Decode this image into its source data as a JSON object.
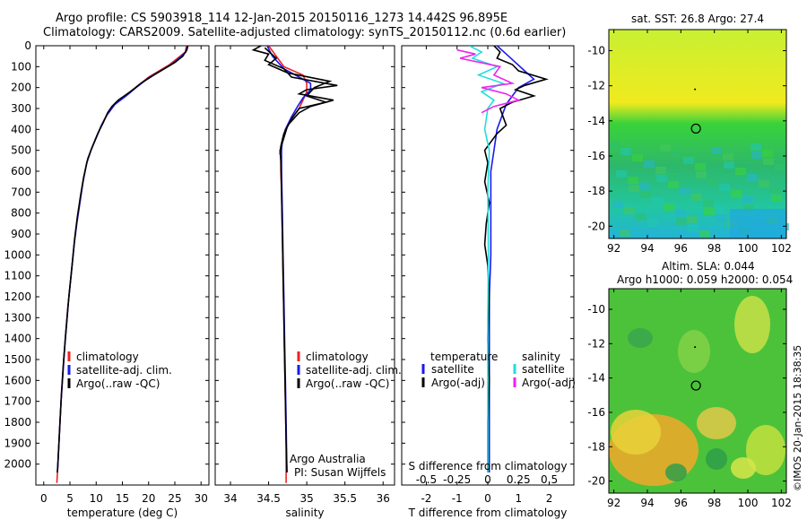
{
  "header": {
    "title_line1": "Argo profile: CS 5903918_114 12-Jan-2015 20150116_1273 14.442S 96.895E",
    "title_line2": "Climatology: CARS2009. Satellite-adjusted climatology: synTS_20150112.nc (0.6d earlier)"
  },
  "depth_axis": {
    "ylim": [
      0,
      2100
    ],
    "ticks": [
      0,
      100,
      200,
      300,
      400,
      500,
      600,
      700,
      800,
      900,
      1000,
      1100,
      1200,
      1300,
      1400,
      1500,
      1600,
      1700,
      1800,
      1900,
      2000
    ],
    "invert": true
  },
  "colors": {
    "climatology": "#ee2222",
    "satellite": "#1a1aee",
    "argo": "#000000",
    "salinity_sat": "#22dddd",
    "salinity_argo": "#ee22ee"
  },
  "chart_data": [
    {
      "type": "line",
      "name": "temperature-panel",
      "xlabel": "temperature (deg C)",
      "xlim": [
        -1.5,
        31.5
      ],
      "xticks": [
        0,
        5,
        10,
        15,
        20,
        25,
        30
      ],
      "legend": [
        "climatology",
        "satellite-adj. clim.",
        "Argo(..raw -QC)"
      ],
      "legend_placement": "lower-center",
      "series": [
        {
          "name": "climatology",
          "points": [
            [
              27.2,
              0
            ],
            [
              27.0,
              30
            ],
            [
              25.5,
              60
            ],
            [
              24,
              90
            ],
            [
              22,
              120
            ],
            [
              20,
              150
            ],
            [
              17.5,
              200
            ],
            [
              15.5,
              240
            ],
            [
              13.5,
              280
            ],
            [
              12,
              330
            ],
            [
              11,
              380
            ],
            [
              10,
              440
            ],
            [
              9,
              500
            ],
            [
              8.2,
              560
            ],
            [
              7.5,
              650
            ],
            [
              6.9,
              750
            ],
            [
              6.3,
              850
            ],
            [
              5.8,
              950
            ],
            [
              5.2,
              1100
            ],
            [
              4.6,
              1250
            ],
            [
              4.1,
              1400
            ],
            [
              3.7,
              1550
            ],
            [
              3.3,
              1700
            ],
            [
              3.0,
              1850
            ],
            [
              2.7,
              2000
            ],
            [
              2.5,
              2090
            ]
          ]
        },
        {
          "name": "satellite-adj. clim.",
          "points": [
            [
              27.4,
              0
            ],
            [
              27.1,
              30
            ],
            [
              25.8,
              60
            ],
            [
              24.3,
              90
            ],
            [
              22.3,
              120
            ],
            [
              20.2,
              150
            ],
            [
              17.6,
              200
            ],
            [
              15.7,
              240
            ],
            [
              13.6,
              280
            ],
            [
              12.1,
              330
            ],
            [
              11,
              380
            ],
            [
              10,
              440
            ],
            [
              9,
              500
            ],
            [
              8.2,
              560
            ],
            [
              7.5,
              650
            ],
            [
              6.9,
              750
            ],
            [
              6.3,
              850
            ],
            [
              5.8,
              950
            ],
            [
              5.2,
              1100
            ],
            [
              4.6,
              1250
            ],
            [
              4.1,
              1400
            ],
            [
              3.7,
              1550
            ],
            [
              3.3,
              1700
            ],
            [
              3.0,
              1850
            ],
            [
              2.7,
              2000
            ],
            [
              2.6,
              2040
            ]
          ]
        },
        {
          "name": "Argo(..raw -QC)",
          "points": [
            [
              27.5,
              0
            ],
            [
              27.3,
              20
            ],
            [
              26.5,
              50
            ],
            [
              25,
              80
            ],
            [
              23,
              110
            ],
            [
              21,
              140
            ],
            [
              18.5,
              180
            ],
            [
              16.5,
              220
            ],
            [
              14.2,
              260
            ],
            [
              13,
              290
            ],
            [
              12.2,
              320
            ],
            [
              11.3,
              370
            ],
            [
              10.3,
              420
            ],
            [
              9.3,
              480
            ],
            [
              8.4,
              540
            ],
            [
              7.6,
              630
            ],
            [
              7.0,
              720
            ],
            [
              6.4,
              820
            ],
            [
              5.9,
              920
            ],
            [
              5.4,
              1050
            ],
            [
              4.8,
              1200
            ],
            [
              4.3,
              1350
            ],
            [
              3.8,
              1500
            ],
            [
              3.4,
              1650
            ],
            [
              3.1,
              1800
            ],
            [
              2.8,
              1950
            ],
            [
              2.6,
              2040
            ]
          ]
        }
      ]
    },
    {
      "type": "line",
      "name": "salinity-panel",
      "xlabel": "salinity",
      "xlim": [
        33.8,
        36.15
      ],
      "xticks": [
        34,
        34.5,
        35,
        35.5,
        36
      ],
      "legend": [
        "climatology",
        "satellite-adj. clim.",
        "Argo(..raw -QC)"
      ],
      "legend_placement": "lower-center",
      "series": [
        {
          "name": "climatology",
          "points": [
            [
              34.5,
              0
            ],
            [
              34.6,
              50
            ],
            [
              34.7,
              100
            ],
            [
              34.95,
              140
            ],
            [
              35.0,
              180
            ],
            [
              35.0,
              220
            ],
            [
              34.95,
              260
            ],
            [
              34.9,
              300
            ],
            [
              34.8,
              350
            ],
            [
              34.72,
              400
            ],
            [
              34.68,
              450
            ],
            [
              34.66,
              500
            ],
            [
              34.66,
              600
            ],
            [
              34.67,
              700
            ],
            [
              34.68,
              900
            ],
            [
              34.69,
              1100
            ],
            [
              34.7,
              1300
            ],
            [
              34.71,
              1500
            ],
            [
              34.72,
              1700
            ],
            [
              34.73,
              1900
            ],
            [
              34.73,
              2090
            ]
          ]
        },
        {
          "name": "satellite-adj. clim.",
          "points": [
            [
              34.48,
              0
            ],
            [
              34.55,
              50
            ],
            [
              34.7,
              110
            ],
            [
              34.9,
              150
            ],
            [
              35.05,
              180
            ],
            [
              35.05,
              210
            ],
            [
              34.95,
              250
            ],
            [
              34.88,
              290
            ],
            [
              34.8,
              340
            ],
            [
              34.72,
              400
            ],
            [
              34.68,
              450
            ],
            [
              34.67,
              500
            ],
            [
              34.67,
              600
            ],
            [
              34.68,
              800
            ],
            [
              34.69,
              1000
            ],
            [
              34.7,
              1200
            ],
            [
              34.71,
              1400
            ],
            [
              34.72,
              1600
            ],
            [
              34.73,
              1800
            ],
            [
              34.74,
              2040
            ]
          ]
        },
        {
          "name": "Argo(..raw -QC)",
          "points": [
            [
              34.4,
              0
            ],
            [
              34.3,
              20
            ],
            [
              34.5,
              40
            ],
            [
              34.45,
              70
            ],
            [
              34.7,
              110
            ],
            [
              34.8,
              150
            ],
            [
              35.4,
              190
            ],
            [
              35.0,
              210
            ],
            [
              34.9,
              230
            ],
            [
              35.35,
              260
            ],
            [
              35.05,
              290
            ],
            [
              34.9,
              320
            ],
            [
              34.75,
              380
            ],
            [
              34.7,
              440
            ],
            [
              34.65,
              500
            ],
            [
              34.66,
              550
            ],
            [
              34.67,
              700
            ],
            [
              34.68,
              900
            ],
            [
              34.69,
              1100
            ],
            [
              34.7,
              1300
            ],
            [
              34.71,
              1500
            ],
            [
              34.72,
              1700
            ],
            [
              34.73,
              1900
            ],
            [
              34.74,
              2040
            ]
          ]
        },
        {
          "name": "Argo(..raw -QC)",
          "points": [
            [
              34.45,
              10
            ],
            [
              34.6,
              60
            ],
            [
              34.5,
              90
            ],
            [
              34.75,
              130
            ],
            [
              35.3,
              170
            ],
            [
              35.1,
              200
            ],
            [
              35.0,
              240
            ],
            [
              35.25,
              270
            ],
            [
              34.9,
              300
            ],
            [
              34.8,
              350
            ],
            [
              34.7,
              420
            ],
            [
              34.66,
              480
            ],
            [
              34.65,
              520
            ]
          ]
        }
      ],
      "annotations": [
        "Argo Australia",
        "PI: Susan Wijffels"
      ]
    },
    {
      "type": "line",
      "name": "difference-panel",
      "xlabel": "T difference from climatology",
      "xlim": [
        -2.8,
        2.8
      ],
      "xticks": [
        -2,
        -1,
        0,
        1,
        2
      ],
      "top_label": "S difference from climatology",
      "top_ticks": [
        -0.5,
        -0.25,
        0,
        0.25,
        0.5
      ],
      "top_scale": 4,
      "legend_temperature": [
        "temperature",
        "satellite",
        "Argo(-adj)"
      ],
      "legend_salinity": [
        "salinity",
        "satellite",
        "Argo(-adj)"
      ],
      "series": [
        {
          "name": "satellite",
          "points": [
            [
              0.3,
              0
            ],
            [
              0.6,
              40
            ],
            [
              0.9,
              80
            ],
            [
              1.2,
              120
            ],
            [
              1.5,
              160
            ],
            [
              1.0,
              200
            ],
            [
              0.8,
              240
            ],
            [
              0.6,
              280
            ],
            [
              0.5,
              320
            ],
            [
              0.3,
              400
            ],
            [
              0.2,
              500
            ],
            [
              0.1,
              600
            ],
            [
              0.1,
              800
            ],
            [
              0.1,
              1000
            ],
            [
              0.05,
              1200
            ],
            [
              0.05,
              1500
            ],
            [
              0.05,
              1800
            ],
            [
              0.05,
              2040
            ]
          ]
        },
        {
          "name": "Argo(-adj)",
          "points": [
            [
              0.2,
              0
            ],
            [
              0.4,
              30
            ],
            [
              0.3,
              60
            ],
            [
              0.8,
              90
            ],
            [
              1.0,
              120
            ],
            [
              1.9,
              160
            ],
            [
              1.2,
              190
            ],
            [
              0.9,
              210
            ],
            [
              1.5,
              240
            ],
            [
              0.8,
              270
            ],
            [
              0.4,
              300
            ],
            [
              0.5,
              340
            ],
            [
              0.6,
              380
            ],
            [
              0.3,
              420
            ],
            [
              0.1,
              460
            ],
            [
              -0.1,
              500
            ],
            [
              0.0,
              560
            ],
            [
              -0.1,
              650
            ],
            [
              0.05,
              750
            ],
            [
              -0.05,
              850
            ],
            [
              -0.1,
              950
            ],
            [
              0.0,
              1050
            ],
            [
              0.05,
              1200
            ],
            [
              0.0,
              1400
            ],
            [
              0.05,
              1600
            ],
            [
              0.0,
              1800
            ],
            [
              0.0,
              2040
            ]
          ]
        },
        {
          "name": "satellite",
          "points": [
            [
              -0.6,
              0
            ],
            [
              -0.2,
              30
            ],
            [
              -0.5,
              60
            ],
            [
              0.3,
              100
            ],
            [
              -0.3,
              140
            ],
            [
              0.5,
              180
            ],
            [
              -0.2,
              220
            ],
            [
              0.2,
              260
            ],
            [
              0.0,
              300
            ],
            [
              -0.1,
              400
            ],
            [
              0.05,
              500
            ],
            [
              0.0,
              700
            ],
            [
              0.02,
              1000
            ],
            [
              0.0,
              1300
            ],
            [
              0.0,
              1600
            ],
            [
              0.0,
              1900
            ],
            [
              0.0,
              2040
            ]
          ]
        },
        {
          "name": "Argo(-adj)",
          "points": [
            [
              -1.0,
              20
            ],
            [
              -0.4,
              40
            ],
            [
              -0.9,
              60
            ],
            [
              0.4,
              100
            ],
            [
              0.2,
              140
            ],
            [
              0.8,
              180
            ],
            [
              -0.2,
              200
            ],
            [
              0.6,
              230
            ],
            [
              1.0,
              260
            ],
            [
              0.2,
              290
            ],
            [
              -0.2,
              320
            ]
          ]
        }
      ]
    }
  ],
  "maps": {
    "sst": {
      "title": "sat. SST: 26.8 Argo: 27.4",
      "xticks": [
        "92",
        "94",
        "96",
        "98",
        "100",
        "102"
      ],
      "yticks": [
        "-10",
        "-12",
        "-14",
        "-16",
        "-18",
        "-20"
      ]
    },
    "sla": {
      "title_line1": "Altim. SLA: 0.044",
      "title_line2": "Argo h1000: 0.059 h2000: 0.054",
      "xticks": [
        "92",
        "94",
        "96",
        "98",
        "100",
        "102"
      ],
      "yticks": [
        "-10",
        "-12",
        "-14",
        "-16",
        "-18",
        "-20"
      ]
    },
    "lon_range": [
      91.7,
      102.3
    ],
    "lat_range": [
      -20.7,
      -8.8
    ],
    "argo_position": {
      "lon": 96.9,
      "lat": -14.44
    }
  },
  "footer": {
    "credit": "©IMOS 20-Jan-2015 18:38:35"
  }
}
